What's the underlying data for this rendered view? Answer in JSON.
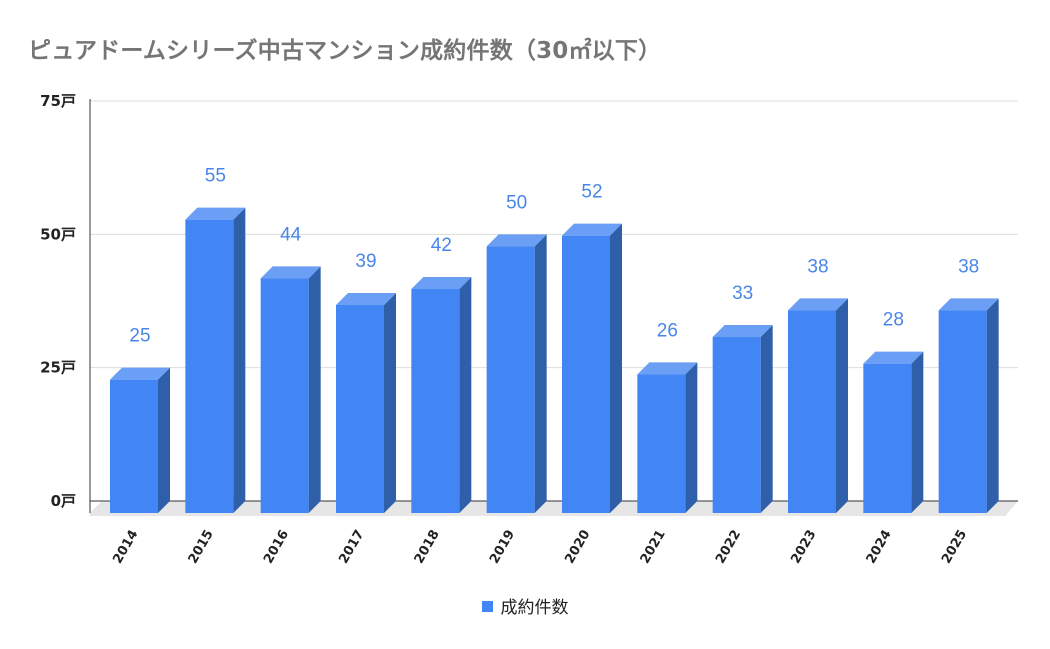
{
  "chart_data": {
    "type": "bar",
    "title": "ピュアドームシリーズ中古マンション成約件数（30㎡以下）",
    "categories": [
      "2014",
      "2015",
      "2016",
      "2017",
      "2018",
      "2019",
      "2020",
      "2021",
      "2022",
      "2023",
      "2024",
      "2025"
    ],
    "series": [
      {
        "name": "成約件数",
        "values": [
          25,
          55,
          44,
          39,
          42,
          50,
          52,
          26,
          33,
          38,
          28,
          38
        ]
      }
    ],
    "data_labels": [
      "25",
      "55",
      "44",
      "39",
      "42",
      "50",
      "52",
      "26",
      "33",
      "38",
      "28",
      "38"
    ],
    "ylim": [
      0,
      75
    ],
    "yticks": [
      0,
      25,
      50,
      75
    ],
    "ytick_labels": [
      "0戸",
      "25戸",
      "50戸",
      "75戸"
    ],
    "grid": true,
    "legend_position": "bottom",
    "style": "3d-bar",
    "colors": {
      "bar_front": "#4285f4",
      "bar_side": "#2e5fa8",
      "bar_top": "#6a9ff5",
      "label": "#4a86e8"
    }
  }
}
